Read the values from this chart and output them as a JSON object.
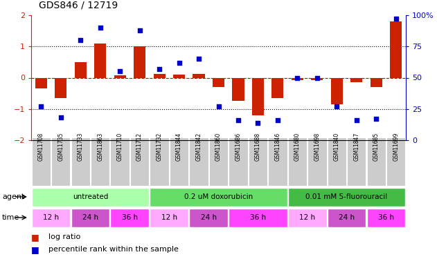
{
  "title": "GDS846 / 12719",
  "samples": [
    "GSM11708",
    "GSM11735",
    "GSM11733",
    "GSM11863",
    "GSM11710",
    "GSM11712",
    "GSM11732",
    "GSM11844",
    "GSM11842",
    "GSM11860",
    "GSM11686",
    "GSM11688",
    "GSM11846",
    "GSM11680",
    "GSM11698",
    "GSM11840",
    "GSM11847",
    "GSM11685",
    "GSM11699"
  ],
  "log_ratio": [
    -0.35,
    -0.65,
    0.5,
    1.1,
    0.08,
    1.0,
    0.12,
    0.1,
    0.12,
    -0.3,
    -0.75,
    -1.2,
    -0.65,
    -0.08,
    -0.08,
    -0.85,
    -0.15,
    -0.3,
    1.8
  ],
  "percentile": [
    27,
    18,
    80,
    90,
    55,
    88,
    57,
    62,
    65,
    27,
    16,
    14,
    16,
    50,
    50,
    27,
    16,
    17,
    97
  ],
  "agents": [
    {
      "label": "untreated",
      "start": 0,
      "end": 6,
      "color": "#aaffaa"
    },
    {
      "label": "0.2 uM doxorubicin",
      "start": 6,
      "end": 13,
      "color": "#66dd66"
    },
    {
      "label": "0.01 mM 5-fluorouracil",
      "start": 13,
      "end": 19,
      "color": "#44bb44"
    }
  ],
  "times": [
    {
      "label": "12 h",
      "start": 0,
      "end": 2,
      "color": "#ffaaff"
    },
    {
      "label": "24 h",
      "start": 2,
      "end": 4,
      "color": "#cc55cc"
    },
    {
      "label": "36 h",
      "start": 4,
      "end": 6,
      "color": "#ff44ff"
    },
    {
      "label": "12 h",
      "start": 6,
      "end": 8,
      "color": "#ffaaff"
    },
    {
      "label": "24 h",
      "start": 8,
      "end": 10,
      "color": "#cc55cc"
    },
    {
      "label": "36 h",
      "start": 10,
      "end": 13,
      "color": "#ff44ff"
    },
    {
      "label": "12 h",
      "start": 13,
      "end": 15,
      "color": "#ffaaff"
    },
    {
      "label": "24 h",
      "start": 15,
      "end": 17,
      "color": "#cc55cc"
    },
    {
      "label": "36 h",
      "start": 17,
      "end": 19,
      "color": "#ff44ff"
    }
  ],
  "ylim": [
    -2,
    2
  ],
  "right_ylim": [
    0,
    100
  ],
  "bar_color": "#cc2200",
  "dot_color": "#0000cc",
  "background_color": "#ffffff",
  "zero_line_color": "#cc0000",
  "agent_label": "agent",
  "time_label": "time",
  "legend_log": "log ratio",
  "legend_pct": "percentile rank within the sample",
  "sample_box_color": "#cccccc",
  "right_ytick_labels": [
    "0",
    "25",
    "50",
    "75",
    "100%"
  ]
}
